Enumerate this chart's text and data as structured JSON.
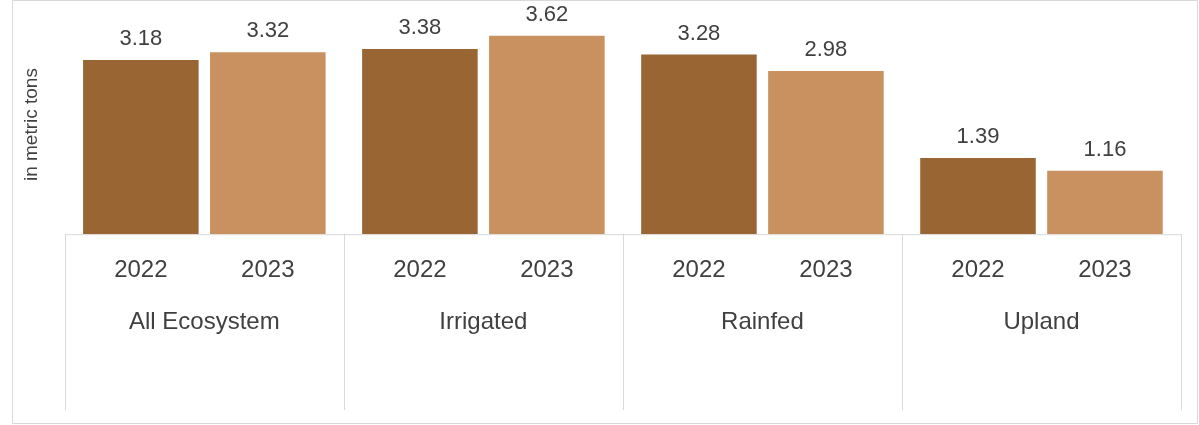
{
  "chart_data": {
    "type": "bar",
    "ylabel": "in metric tons",
    "categories": [
      "All Ecosystem",
      "Irrigated",
      "Rainfed",
      "Upland"
    ],
    "series": [
      {
        "name": "2022",
        "color": "#996633",
        "values": [
          3.18,
          3.38,
          3.28,
          1.39
        ]
      },
      {
        "name": "2023",
        "color": "#c8915f",
        "values": [
          3.32,
          3.62,
          2.98,
          1.16
        ]
      }
    ],
    "tick_labels": "x",
    "grid": false,
    "legend": false,
    "data_labels": true
  }
}
